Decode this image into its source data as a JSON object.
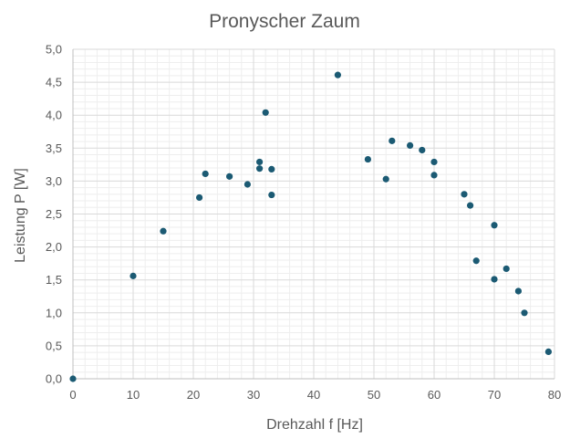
{
  "chart_data": {
    "type": "scatter",
    "title": "Pronyscher Zaum",
    "xlabel": "Drehzahl f [Hz]",
    "ylabel": "Leistung P [W]",
    "xlim": [
      0,
      80
    ],
    "ylim": [
      0,
      5
    ],
    "x_ticks": [
      "0",
      "10",
      "20",
      "30",
      "40",
      "50",
      "60",
      "70",
      "80"
    ],
    "y_ticks": [
      "0,0",
      "0,5",
      "1,0",
      "1,5",
      "2,0",
      "2,5",
      "3,0",
      "3,5",
      "4,0",
      "4,5",
      "5,0"
    ],
    "grid": true,
    "minor_grid": true,
    "legend": "none",
    "marker_color": "#1b5a73",
    "points": [
      [
        0,
        0.0
      ],
      [
        10,
        1.56
      ],
      [
        15,
        2.24
      ],
      [
        21,
        2.75
      ],
      [
        22,
        3.11
      ],
      [
        26,
        3.07
      ],
      [
        29,
        2.95
      ],
      [
        31,
        3.29
      ],
      [
        31,
        3.19
      ],
      [
        32,
        4.04
      ],
      [
        33,
        3.18
      ],
      [
        33,
        2.79
      ],
      [
        44,
        4.61
      ],
      [
        49,
        3.33
      ],
      [
        52,
        3.03
      ],
      [
        53,
        3.61
      ],
      [
        56,
        3.54
      ],
      [
        58,
        3.47
      ],
      [
        60,
        3.29
      ],
      [
        60,
        3.09
      ],
      [
        65,
        2.8
      ],
      [
        66,
        2.63
      ],
      [
        67,
        1.79
      ],
      [
        70,
        2.33
      ],
      [
        70,
        1.51
      ],
      [
        72,
        1.67
      ],
      [
        74,
        1.33
      ],
      [
        75,
        1.0
      ],
      [
        79,
        0.41
      ]
    ]
  }
}
